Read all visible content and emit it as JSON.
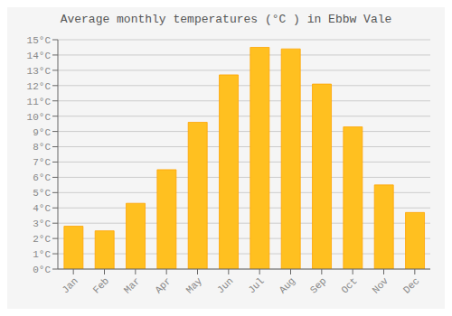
{
  "chart_data": {
    "type": "bar",
    "title": "Average monthly temperatures (°C ) in Ebbw Vale",
    "categories": [
      "Jan",
      "Feb",
      "Mar",
      "Apr",
      "May",
      "Jun",
      "Jul",
      "Aug",
      "Sep",
      "Oct",
      "Nov",
      "Dec"
    ],
    "values": [
      2.8,
      2.5,
      4.3,
      6.5,
      9.6,
      12.7,
      14.5,
      14.4,
      12.1,
      9.3,
      5.5,
      3.7
    ],
    "color": "#FFC020",
    "ylim": [
      0,
      15
    ],
    "yticks": [
      {
        "value": 0,
        "label": "0°C"
      },
      {
        "value": 1,
        "label": "1°C"
      },
      {
        "value": 2,
        "label": "2°C"
      },
      {
        "value": 3,
        "label": "3°C"
      },
      {
        "value": 4,
        "label": "4°C"
      },
      {
        "value": 5,
        "label": "5°C"
      },
      {
        "value": 6,
        "label": "6°C"
      },
      {
        "value": 7,
        "label": "7°C"
      },
      {
        "value": 8,
        "label": "8°C"
      },
      {
        "value": 9,
        "label": "9°C"
      },
      {
        "value": 10,
        "label": "10°C"
      },
      {
        "value": 11,
        "label": "11°C"
      },
      {
        "value": 12,
        "label": "12°C"
      },
      {
        "value": 13,
        "label": "13°C"
      },
      {
        "value": 14,
        "label": "14°C"
      },
      {
        "value": 15,
        "label": "15°C"
      }
    ],
    "grid": true
  }
}
